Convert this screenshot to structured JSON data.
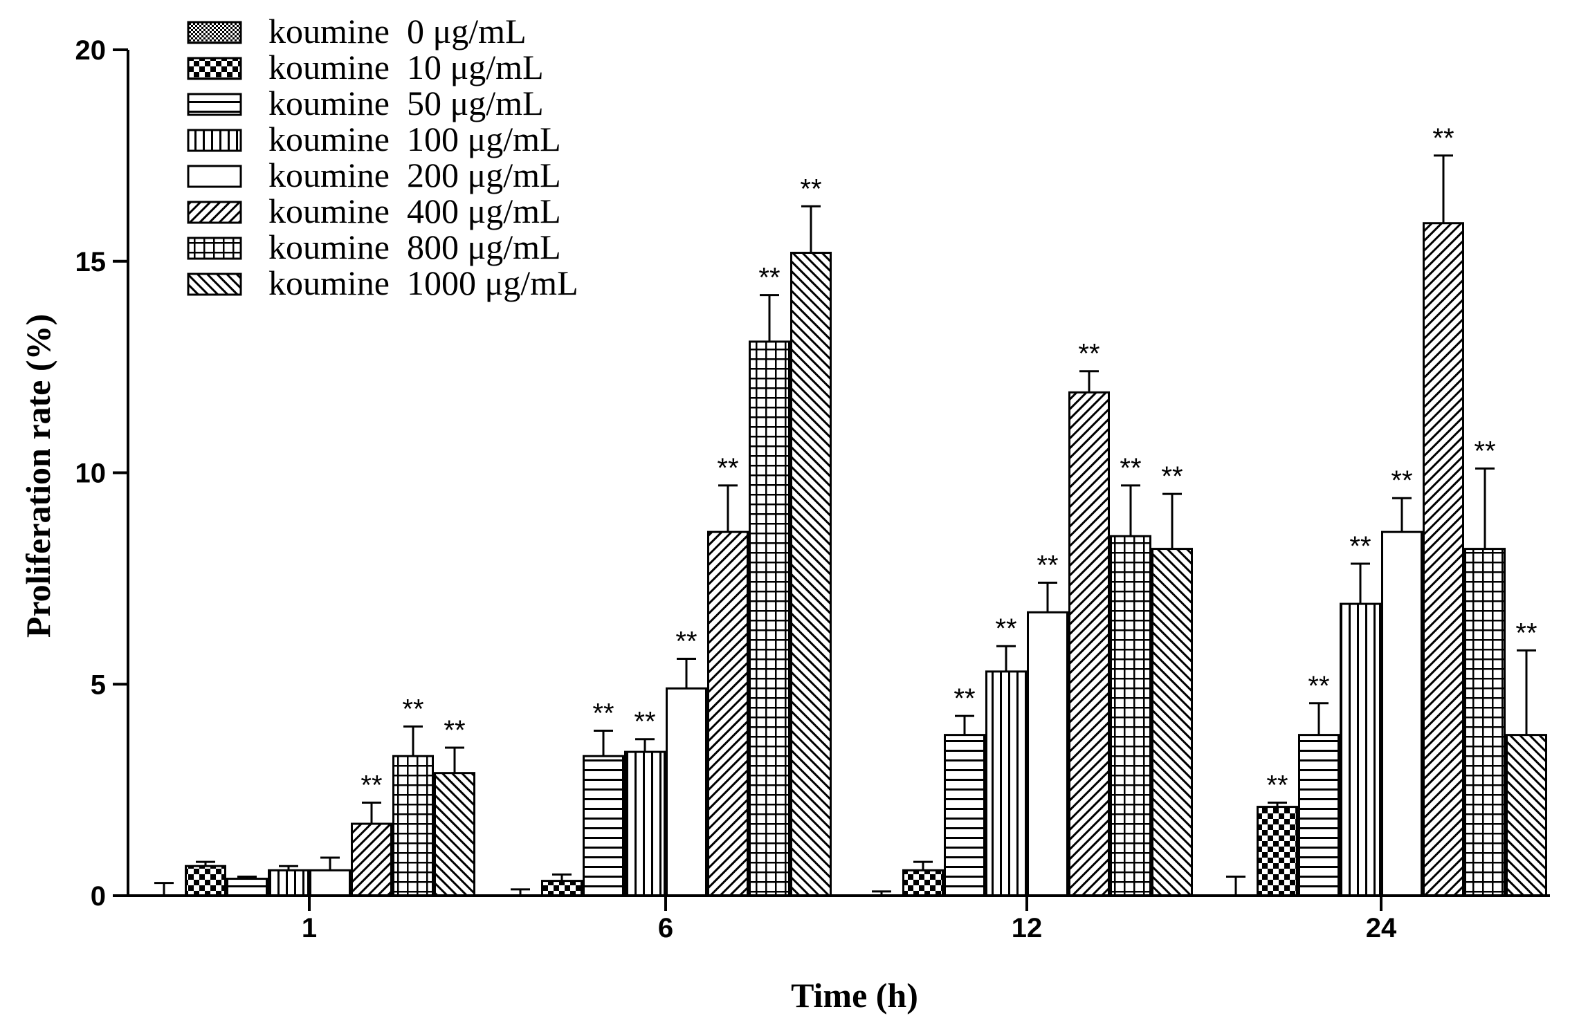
{
  "chart_data": {
    "type": "bar",
    "title": "",
    "xlabel": "Time (h)",
    "ylabel": "Proliferation rate (%)",
    "ylim": [
      0,
      20
    ],
    "yticks": [
      "0",
      "5",
      "10",
      "15",
      "20"
    ],
    "categories": [
      "1",
      "6",
      "12",
      "24"
    ],
    "legend_position": "top-left",
    "series": [
      {
        "name": "koumine  0 μg/mL",
        "pattern": "fine-check",
        "values": [
          0.0,
          0.0,
          0.0,
          0.0
        ],
        "errors": [
          0.3,
          0.15,
          0.1,
          0.45
        ],
        "sig": [
          "",
          "",
          "",
          ""
        ]
      },
      {
        "name": "koumine  10 μg/mL",
        "pattern": "checker",
        "values": [
          0.7,
          0.35,
          0.6,
          2.1
        ],
        "errors": [
          0.1,
          0.15,
          0.2,
          0.1
        ],
        "sig": [
          "",
          "",
          "",
          "**"
        ]
      },
      {
        "name": "koumine  50 μg/mL",
        "pattern": "horizontal",
        "values": [
          0.4,
          3.3,
          3.8,
          3.8
        ],
        "errors": [
          0.05,
          0.6,
          0.45,
          0.75
        ],
        "sig": [
          "",
          "**",
          "**",
          "**"
        ]
      },
      {
        "name": "koumine  100 μg/mL",
        "pattern": "vertical",
        "values": [
          0.6,
          3.4,
          5.3,
          6.9
        ],
        "errors": [
          0.1,
          0.3,
          0.6,
          0.95
        ],
        "sig": [
          "",
          "**",
          "**",
          "**"
        ]
      },
      {
        "name": "koumine  200 μg/mL",
        "pattern": "solid-white",
        "values": [
          0.6,
          4.9,
          6.7,
          8.6
        ],
        "errors": [
          0.3,
          0.7,
          0.7,
          0.8
        ],
        "sig": [
          "",
          "**",
          "**",
          "**"
        ]
      },
      {
        "name": "koumine  400 μg/mL",
        "pattern": "diagonal-back",
        "values": [
          1.7,
          8.6,
          11.9,
          15.9
        ],
        "errors": [
          0.5,
          1.1,
          0.5,
          1.6
        ],
        "sig": [
          "**",
          "**",
          "**",
          "**"
        ]
      },
      {
        "name": "koumine  800 μg/mL",
        "pattern": "grid",
        "values": [
          3.3,
          13.1,
          8.5,
          8.2
        ],
        "errors": [
          0.7,
          1.1,
          1.2,
          1.9
        ],
        "sig": [
          "**",
          "**",
          "**",
          "**"
        ]
      },
      {
        "name": "koumine  1000 μg/mL",
        "pattern": "diagonal-forward",
        "values": [
          2.9,
          15.2,
          8.2,
          3.8
        ],
        "errors": [
          0.6,
          1.1,
          1.3,
          2.0
        ],
        "sig": [
          "**",
          "**",
          "**",
          "**"
        ]
      }
    ]
  }
}
